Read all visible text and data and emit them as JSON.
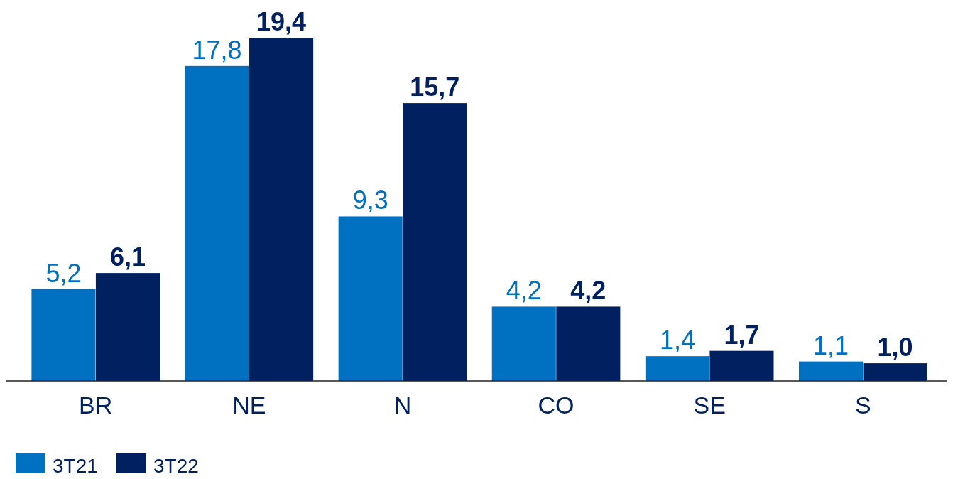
{
  "chart_data": {
    "type": "bar",
    "categories": [
      "BR",
      "NE",
      "N",
      "CO",
      "SE",
      "S"
    ],
    "series": [
      {
        "name": "3T21",
        "color": "#0070c0",
        "values": [
          5.2,
          17.8,
          9.3,
          4.2,
          1.4,
          1.1
        ],
        "value_labels": [
          "5,2",
          "17,8",
          "9,3",
          "4,2",
          "1,4",
          "1,1"
        ]
      },
      {
        "name": "3T22",
        "color": "#00205f",
        "values": [
          6.1,
          19.4,
          15.7,
          4.2,
          1.7,
          1.0
        ],
        "value_labels": [
          "6,1",
          "19,4",
          "15,7",
          "4,2",
          "1,7",
          "1,0"
        ]
      }
    ],
    "legend": "bottom left"
  }
}
